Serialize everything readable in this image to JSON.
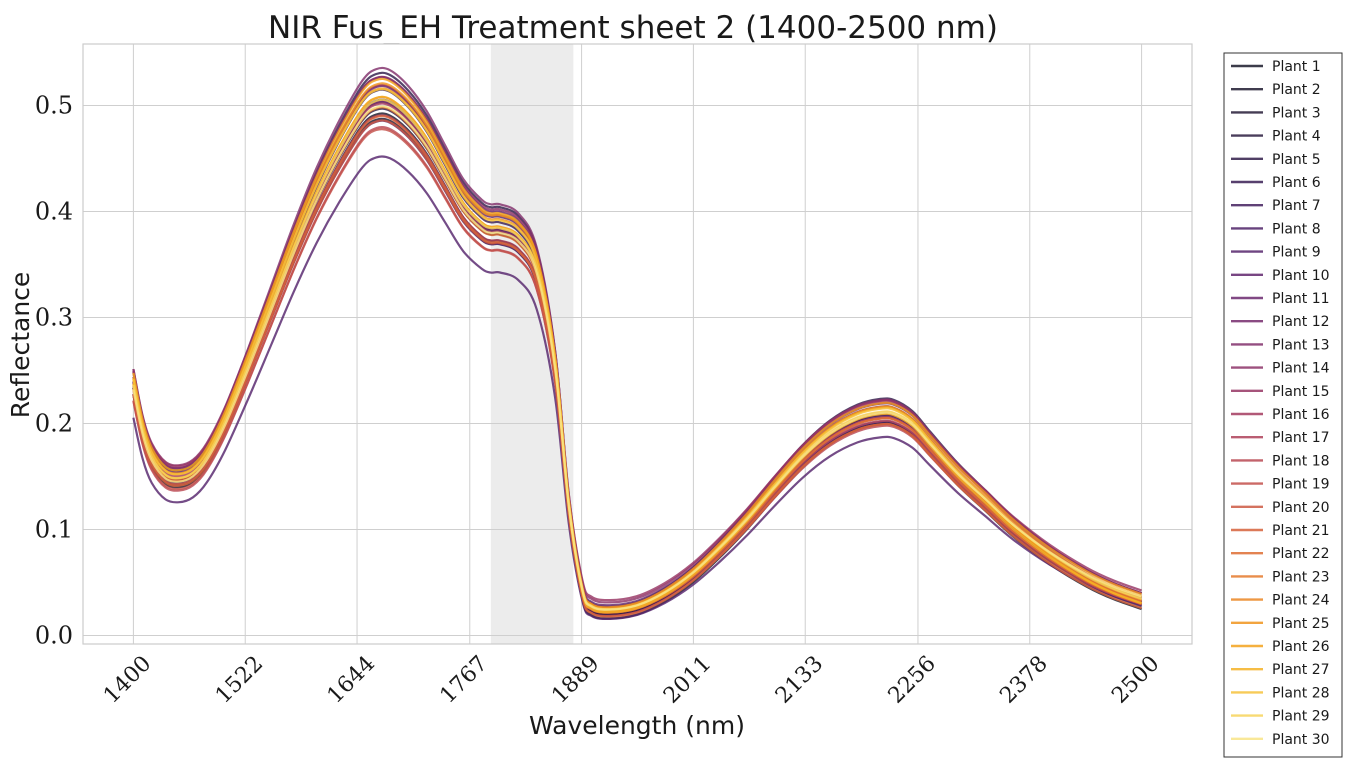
{
  "chart_data": {
    "type": "line",
    "title": "NIR Fus_EH Treatment sheet 2 (1400-2500 nm)",
    "xlabel": "Wavelength (nm)",
    "ylabel": "Reflectance",
    "xlim": [
      1345,
      2555
    ],
    "ylim": [
      -0.008,
      0.558
    ],
    "x_ticks": [
      1400,
      1522,
      1644,
      1767,
      1889,
      2011,
      2133,
      2256,
      2378,
      2500
    ],
    "y_ticks": [
      0.0,
      0.1,
      0.2,
      0.3,
      0.4,
      0.5
    ],
    "y_tick_labels": [
      "0.0",
      "0.1",
      "0.2",
      "0.3",
      "0.4",
      "0.5"
    ],
    "grid": true,
    "legend_position": "outside-right",
    "shaded_region": {
      "x_start": 1790,
      "x_end": 1880,
      "color": "#ececec"
    },
    "profile": {
      "x": [
        1400,
        1410,
        1420,
        1435,
        1450,
        1465,
        1480,
        1500,
        1525,
        1550,
        1575,
        1600,
        1625,
        1650,
        1665,
        1680,
        1700,
        1720,
        1740,
        1760,
        1780,
        1790,
        1800,
        1820,
        1840,
        1860,
        1875,
        1890,
        1900,
        1920,
        1950,
        1980,
        2010,
        2040,
        2070,
        2100,
        2130,
        2160,
        2190,
        2215,
        2230,
        2250,
        2270,
        2300,
        2330,
        2360,
        2400,
        2440,
        2470,
        2500
      ],
      "y": [
        0.232,
        0.19,
        0.165,
        0.148,
        0.145,
        0.15,
        0.165,
        0.198,
        0.25,
        0.305,
        0.36,
        0.41,
        0.452,
        0.487,
        0.497,
        0.496,
        0.482,
        0.46,
        0.43,
        0.4,
        0.382,
        0.378,
        0.378,
        0.37,
        0.34,
        0.25,
        0.12,
        0.04,
        0.025,
        0.022,
        0.026,
        0.038,
        0.056,
        0.08,
        0.107,
        0.137,
        0.165,
        0.187,
        0.201,
        0.206,
        0.205,
        0.195,
        0.176,
        0.148,
        0.124,
        0.1,
        0.074,
        0.053,
        0.041,
        0.032
      ]
    },
    "series": [
      {
        "name": "Plant 1",
        "color": "#1a1a2a",
        "scale": 1.0,
        "offset": -0.005
      },
      {
        "name": "Plant 2",
        "color": "#1f1a30",
        "scale": 0.98,
        "offset": 0.0
      },
      {
        "name": "Plant 3",
        "color": "#241b36",
        "scale": 1.02,
        "offset": -0.003
      },
      {
        "name": "Plant 4",
        "color": "#2a1c40",
        "scale": 0.99,
        "offset": 0.004
      },
      {
        "name": "Plant 5",
        "color": "#311d4a",
        "scale": 1.06,
        "offset": 0.002
      },
      {
        "name": "Plant 6",
        "color": "#3a1f55",
        "scale": 1.04,
        "offset": -0.002
      },
      {
        "name": "Plant 7",
        "color": "#43205e",
        "scale": 1.01,
        "offset": 0.001
      },
      {
        "name": "Plant 8",
        "color": "#4d2267",
        "scale": 0.97,
        "offset": 0.003
      },
      {
        "name": "Plant 9",
        "color": "#56246c",
        "scale": 0.92,
        "offset": -0.008
      },
      {
        "name": "Plant 10",
        "color": "#60266d",
        "scale": 1.03,
        "offset": 0.005
      },
      {
        "name": "Plant 11",
        "color": "#6b296e",
        "scale": 1.05,
        "offset": 0.006
      },
      {
        "name": "Plant 12",
        "color": "#762c6d",
        "scale": 1.0,
        "offset": 0.008
      },
      {
        "name": "Plant 13",
        "color": "#812f6b",
        "scale": 1.07,
        "offset": 0.003
      },
      {
        "name": "Plant 14",
        "color": "#8c3268",
        "scale": 1.04,
        "offset": 0.01
      },
      {
        "name": "Plant 15",
        "color": "#973664",
        "scale": 1.02,
        "offset": 0.012
      },
      {
        "name": "Plant 16",
        "color": "#a33b5f",
        "scale": 1.0,
        "offset": 0.006
      },
      {
        "name": "Plant 17",
        "color": "#ae4159",
        "scale": 0.98,
        "offset": 0.004
      },
      {
        "name": "Plant 18",
        "color": "#b94852",
        "scale": 0.97,
        "offset": -0.004
      },
      {
        "name": "Plant 19",
        "color": "#c3504b",
        "scale": 0.96,
        "offset": -0.001
      },
      {
        "name": "Plant 20",
        "color": "#cd5943",
        "scale": 0.97,
        "offset": 0.002
      },
      {
        "name": "Plant 21",
        "color": "#d6623b",
        "scale": 0.99,
        "offset": -0.002
      },
      {
        "name": "Plant 22",
        "color": "#de6d33",
        "scale": 1.0,
        "offset": 0.001
      },
      {
        "name": "Plant 23",
        "color": "#e5792b",
        "scale": 1.02,
        "offset": 0.0
      },
      {
        "name": "Plant 24",
        "color": "#eb8623",
        "scale": 1.03,
        "offset": 0.003
      },
      {
        "name": "Plant 25",
        "color": "#f0941d",
        "scale": 1.04,
        "offset": 0.002
      },
      {
        "name": "Plant 26",
        "color": "#f3a21c",
        "scale": 1.05,
        "offset": 0.004
      },
      {
        "name": "Plant 27",
        "color": "#f5b124",
        "scale": 1.02,
        "offset": 0.001
      },
      {
        "name": "Plant 28",
        "color": "#f6c23b",
        "scale": 1.03,
        "offset": 0.003
      },
      {
        "name": "Plant 29",
        "color": "#f7d35b",
        "scale": 1.01,
        "offset": 0.002
      },
      {
        "name": "Plant 30",
        "color": "#f8e486",
        "scale": 1.0,
        "offset": 0.0
      }
    ]
  }
}
